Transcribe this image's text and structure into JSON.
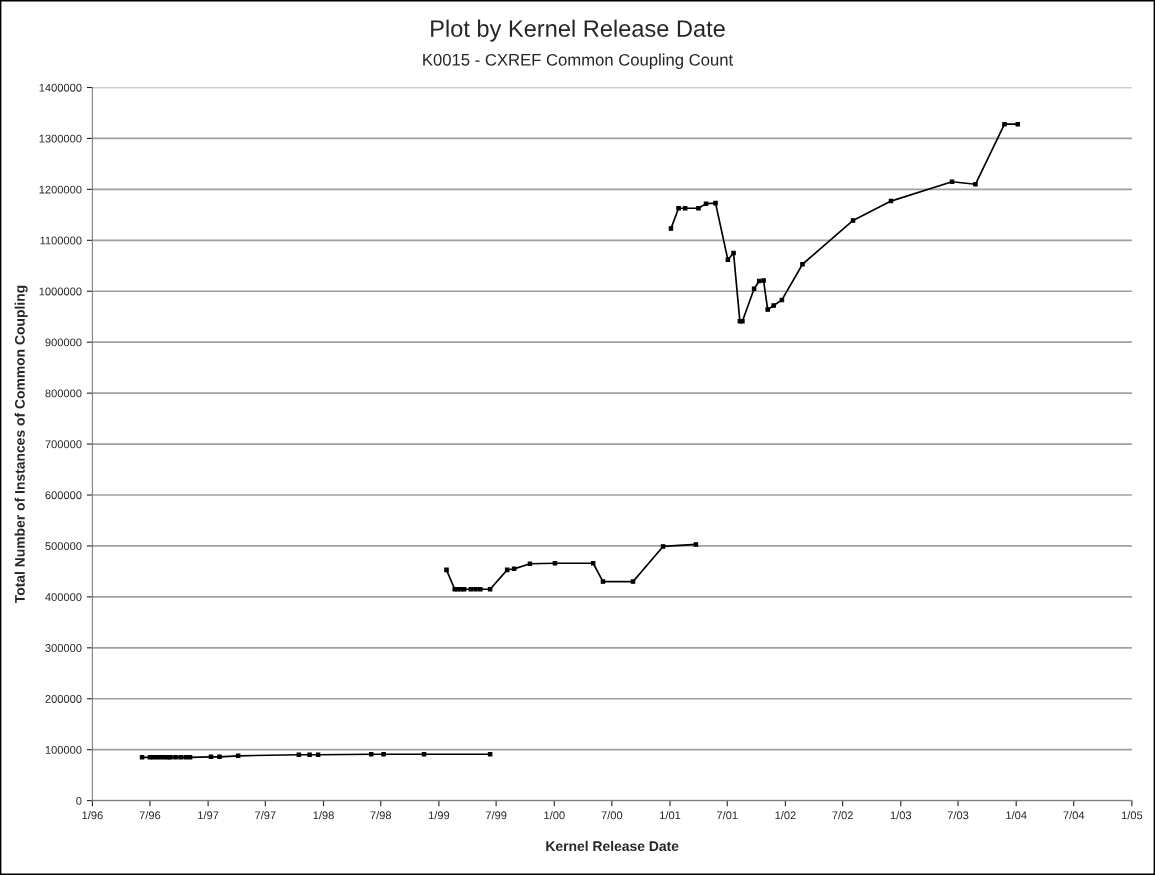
{
  "chart_data": {
    "type": "line",
    "title": "Plot by Kernel Release Date",
    "subtitle": "K0015 - CXREF Common Coupling Count",
    "xlabel": "Kernel Release Date",
    "ylabel": "Total Number of Instances of Common Coupling",
    "series": [
      {
        "color": "#000000",
        "x": [
          "1996-06-06",
          "1996-07-01",
          "1996-07-12",
          "1996-07-24",
          "1996-08-05",
          "1996-08-17",
          "1996-08-28",
          "1996-09-04",
          "1996-09-20",
          "1996-10-06",
          "1996-10-22",
          "1996-11-05",
          "1997-01-10",
          "1997-02-06",
          "1997-04-06",
          "1997-10-15",
          "1997-11-18",
          "1997-12-15",
          "1998-06-01",
          "1998-07-10",
          "1998-11-15",
          "1999-06-12"
        ],
        "values": [
          85000,
          85000,
          85000,
          85000,
          85000,
          85000,
          85000,
          85000,
          85000,
          85000,
          85000,
          85000,
          86000,
          86000,
          88000,
          90000,
          90000,
          90000,
          91000,
          91000,
          91000,
          91000
        ]
      },
      {
        "color": "#000000",
        "x": [
          "1999-01-25",
          "1999-02-20",
          "1999-03-01",
          "1999-03-12",
          "1999-03-22",
          "1999-04-12",
          "1999-04-27",
          "1999-05-12",
          "1999-06-12",
          "1999-08-05",
          "1999-08-27",
          "1999-10-16",
          "2000-01-03",
          "2000-05-03",
          "2000-06-03",
          "2000-09-06",
          "2000-12-10",
          "2001-03-24"
        ],
        "values": [
          453000,
          415000,
          415000,
          415000,
          415000,
          415000,
          415000,
          415000,
          415000,
          453000,
          455000,
          465000,
          466000,
          466000,
          430000,
          430000,
          499000,
          503000
        ]
      },
      {
        "color": "#000000",
        "x": [
          "2001-01-04",
          "2001-01-28",
          "2001-02-18",
          "2001-04-01",
          "2001-04-25",
          "2001-05-25",
          "2001-07-03",
          "2001-07-21",
          "2001-08-10",
          "2001-08-18",
          "2001-09-24",
          "2001-10-10",
          "2001-10-24",
          "2001-11-06",
          "2001-11-25",
          "2001-12-21",
          "2002-02-24",
          "2002-08-03",
          "2002-12-01",
          "2003-06-12",
          "2003-08-25",
          "2003-11-25",
          "2004-01-06"
        ],
        "values": [
          1123000,
          1163000,
          1163000,
          1163000,
          1172000,
          1173000,
          1062000,
          1075000,
          941000,
          941000,
          1005000,
          1020000,
          1021000,
          964000,
          972000,
          983000,
          1053000,
          1139000,
          1177000,
          1215000,
          1210000,
          1328000,
          1328000
        ]
      }
    ],
    "xlim": [
      "1996-01-01",
      "2005-01-01"
    ],
    "xticks": [
      {
        "value": "1996-01-01",
        "label": "1/96"
      },
      {
        "value": "1996-07-01",
        "label": "7/96"
      },
      {
        "value": "1997-01-01",
        "label": "1/97"
      },
      {
        "value": "1997-07-01",
        "label": "7/97"
      },
      {
        "value": "1998-01-01",
        "label": "1/98"
      },
      {
        "value": "1998-07-01",
        "label": "7/98"
      },
      {
        "value": "1999-01-01",
        "label": "1/99"
      },
      {
        "value": "1999-07-01",
        "label": "7/99"
      },
      {
        "value": "2000-01-01",
        "label": "1/00"
      },
      {
        "value": "2000-07-01",
        "label": "7/00"
      },
      {
        "value": "2001-01-01",
        "label": "1/01"
      },
      {
        "value": "2001-07-01",
        "label": "7/01"
      },
      {
        "value": "2002-01-01",
        "label": "1/02"
      },
      {
        "value": "2002-07-01",
        "label": "7/02"
      },
      {
        "value": "2003-01-01",
        "label": "1/03"
      },
      {
        "value": "2003-07-01",
        "label": "7/03"
      },
      {
        "value": "2004-01-01",
        "label": "1/04"
      },
      {
        "value": "2004-07-01",
        "label": "7/04"
      },
      {
        "value": "2005-01-01",
        "label": "1/05"
      }
    ],
    "ylim": [
      0,
      1400000
    ],
    "yticks": [
      0,
      100000,
      200000,
      300000,
      400000,
      500000,
      600000,
      700000,
      800000,
      900000,
      1000000,
      1100000,
      1200000,
      1300000,
      1400000
    ],
    "grid": "y",
    "marker": "square",
    "line_style": "solid"
  }
}
